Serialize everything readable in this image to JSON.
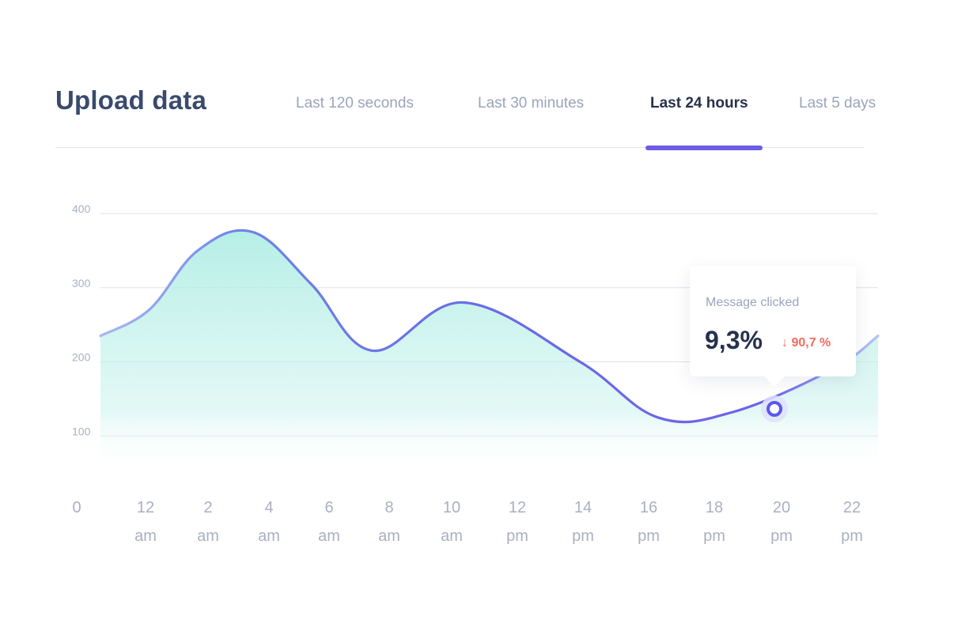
{
  "header": {
    "title": "Upload data",
    "tabs": [
      {
        "label": "Last 120 seconds",
        "active": false
      },
      {
        "label": "Last 30 minutes",
        "active": false
      },
      {
        "label": "Last 24 hours",
        "active": true
      },
      {
        "label": "Last 5 days",
        "active": false
      }
    ]
  },
  "tooltip": {
    "label": "Message clicked",
    "value": "9,3%",
    "change": "↓ 90,7 %"
  },
  "colors": {
    "line_start": "#aab8f0",
    "line_main": "#6c63e8",
    "area_top": "#a8ece2",
    "grid": "#dde1ea",
    "axis_text": "#a9b0c2",
    "marker": "#5b57f0",
    "negative": "#f46b5d"
  },
  "chart_data": {
    "type": "area",
    "title": "",
    "xlabel": "",
    "ylabel": "",
    "ylim": [
      0,
      400
    ],
    "yticks": [
      "100",
      "200",
      "300",
      "400"
    ],
    "xtick_labels": [
      [
        "0",
        ""
      ],
      [
        "12",
        "am"
      ],
      [
        "2",
        "am"
      ],
      [
        "4",
        "am"
      ],
      [
        "6",
        "am"
      ],
      [
        "8",
        "am"
      ],
      [
        "10",
        "am"
      ],
      [
        "12",
        "pm"
      ],
      [
        "14",
        "pm"
      ],
      [
        "16",
        "pm"
      ],
      [
        "18",
        "pm"
      ],
      [
        "20",
        "pm"
      ],
      [
        "22",
        "pm"
      ]
    ],
    "grid": true,
    "series": [
      {
        "x": [
          0,
          1.5,
          3,
          4.7,
          6.5,
          8.4,
          11.2,
          14.8,
          17.2,
          19.5,
          22.6,
          24
        ],
        "values": [
          235,
          270,
          350,
          375,
          305,
          215,
          280,
          200,
          125,
          132,
          190,
          235
        ]
      }
    ],
    "highlight": {
      "x": 19.8,
      "y": 138
    }
  }
}
